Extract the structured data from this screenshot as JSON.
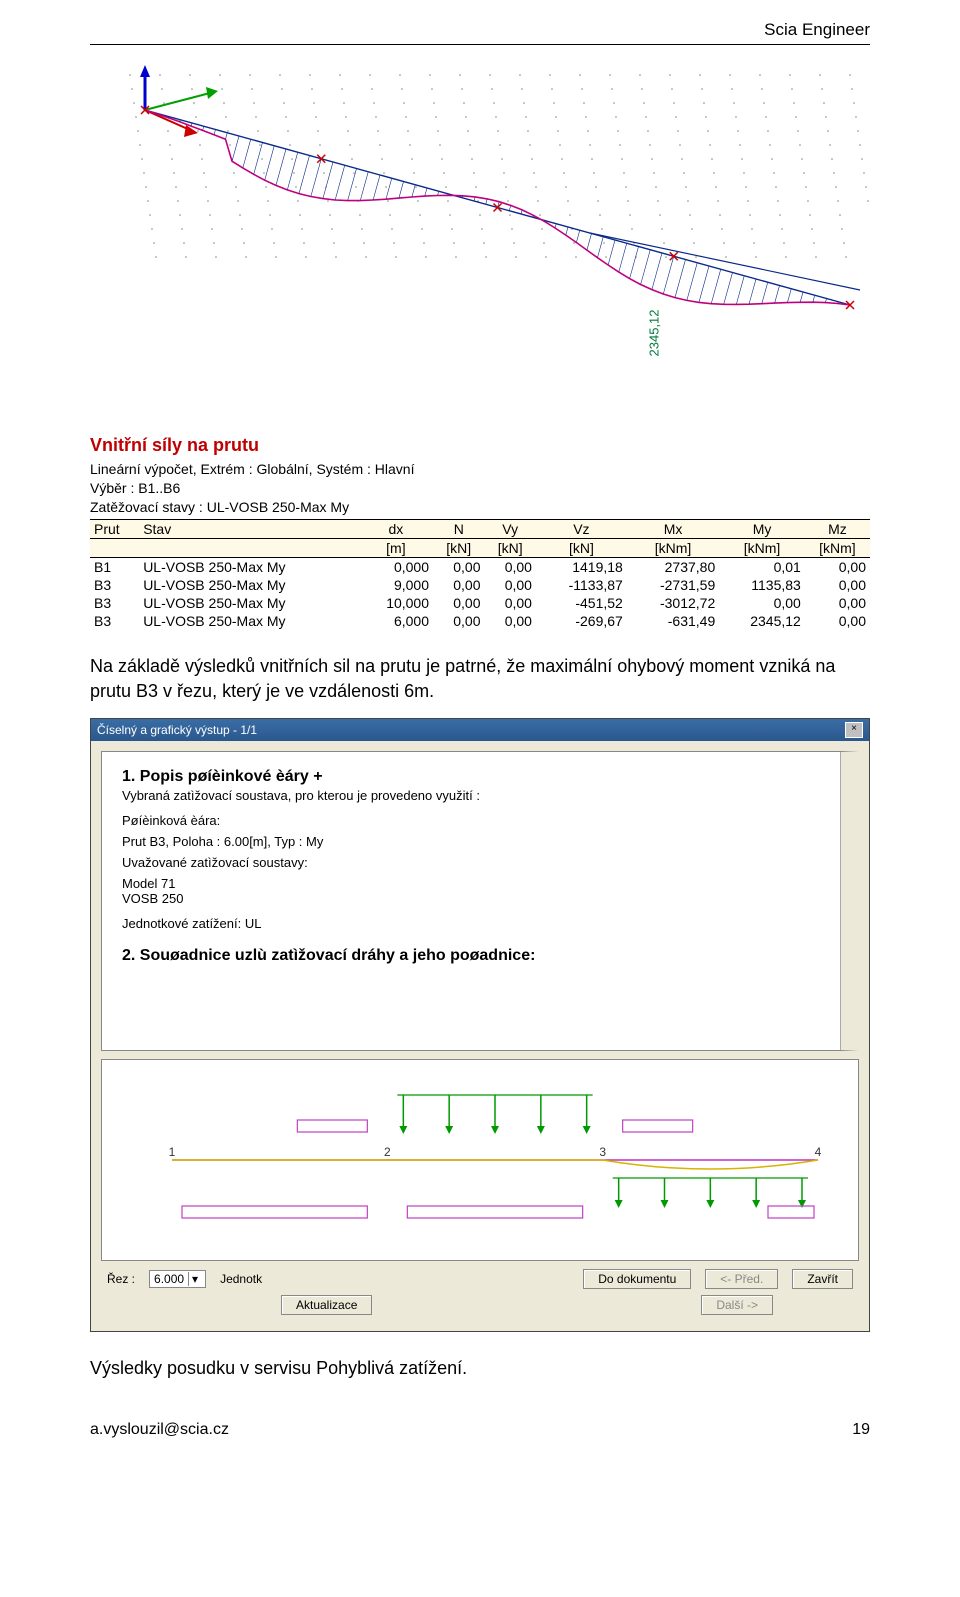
{
  "header": {
    "product": "Scia Engineer"
  },
  "moment_diagram": {
    "value_label": "2345,12",
    "axis_color": "#0a2a8a",
    "curve_color": "#c1007f",
    "hatch_color": "#0a2a8a",
    "arrow_green": "#00a000",
    "arrow_red": "#cc0000",
    "arrow_blue": "#0000cc",
    "dot_color": "#888888",
    "label_color": "#007a3a"
  },
  "results": {
    "heading": "Vnitřní síly na prutu",
    "lines": [
      "Lineární výpočet, Extrém : Globální, Systém : Hlavní",
      "Výběr : B1..B6",
      "Zatěžovací stavy : UL-VOSB 250-Max My"
    ],
    "columns": [
      "Prut",
      "Stav",
      "dx",
      "N",
      "Vy",
      "Vz",
      "Mx",
      "My",
      "Mz"
    ],
    "units": [
      "",
      "",
      "[m]",
      "[kN]",
      "[kN]",
      "[kN]",
      "[kNm]",
      "[kNm]",
      "[kNm]"
    ],
    "rows": [
      [
        "B1",
        "UL-VOSB 250-Max My",
        "0,000",
        "0,00",
        "0,00",
        "1419,18",
        "2737,80",
        "0,01",
        "0,00"
      ],
      [
        "B3",
        "UL-VOSB 250-Max My",
        "9,000",
        "0,00",
        "0,00",
        "-1133,87",
        "-2731,59",
        "1135,83",
        "0,00"
      ],
      [
        "B3",
        "UL-VOSB 250-Max My",
        "10,000",
        "0,00",
        "0,00",
        "-451,52",
        "-3012,72",
        "0,00",
        "0,00"
      ],
      [
        "B3",
        "UL-VOSB 250-Max My",
        "6,000",
        "0,00",
        "0,00",
        "-269,67",
        "-631,49",
        "2345,12",
        "0,00"
      ]
    ]
  },
  "paragraph1": "Na základě výsledků vnitřních sil na prutu je patrné, že maximální ohybový moment vzniká na prutu B3 v řezu, který je ve vzdálenosti 6m.",
  "dialog": {
    "title": "Číselný a grafický výstup - 1/1",
    "h1": "1. Popis  pøíèinkové  èáry  +",
    "h1_sub": "Vybraná zatìžovací soustava, pro kterou je provedeno využití :",
    "p_line": "Pøíèinková  èára:",
    "p_beam": "Prut  B3,  Poloha  :     6.00[m],  Typ  :     My",
    "p_sys_h": "Uvažované  zatìžovací  soustavy:",
    "p_sys1": "Model  71",
    "p_sys2": "VOSB  250",
    "p_unit": "Jednotkové  zatížení:    UL",
    "h2": "2. Souøadnice  uzlù  zatìžovací  dráhy  a  jeho  poøadnice:",
    "axis_labels": [
      "1",
      "2",
      "3",
      "4"
    ],
    "diagram_colors": {
      "arrow_green": "#009a00",
      "box_magenta": "#c040c0",
      "track_magenta": "#c030c0",
      "influence_yellow": "#d8b300",
      "text": "#333333"
    },
    "footer": {
      "rez_label": "Řez :",
      "rez_value": "6.000",
      "unit_label": "Jednotk",
      "btn_doc": "Do dokumentu",
      "btn_prev": "<- Před.",
      "btn_close": "Zavřít",
      "btn_next": "Další ->",
      "btn_update": "Aktualizace"
    }
  },
  "paragraph2": "Výsledky posudku v servisu Pohyblivá zatížení.",
  "footer": {
    "email": "a.vyslouzil@scia.cz",
    "page": "19"
  }
}
